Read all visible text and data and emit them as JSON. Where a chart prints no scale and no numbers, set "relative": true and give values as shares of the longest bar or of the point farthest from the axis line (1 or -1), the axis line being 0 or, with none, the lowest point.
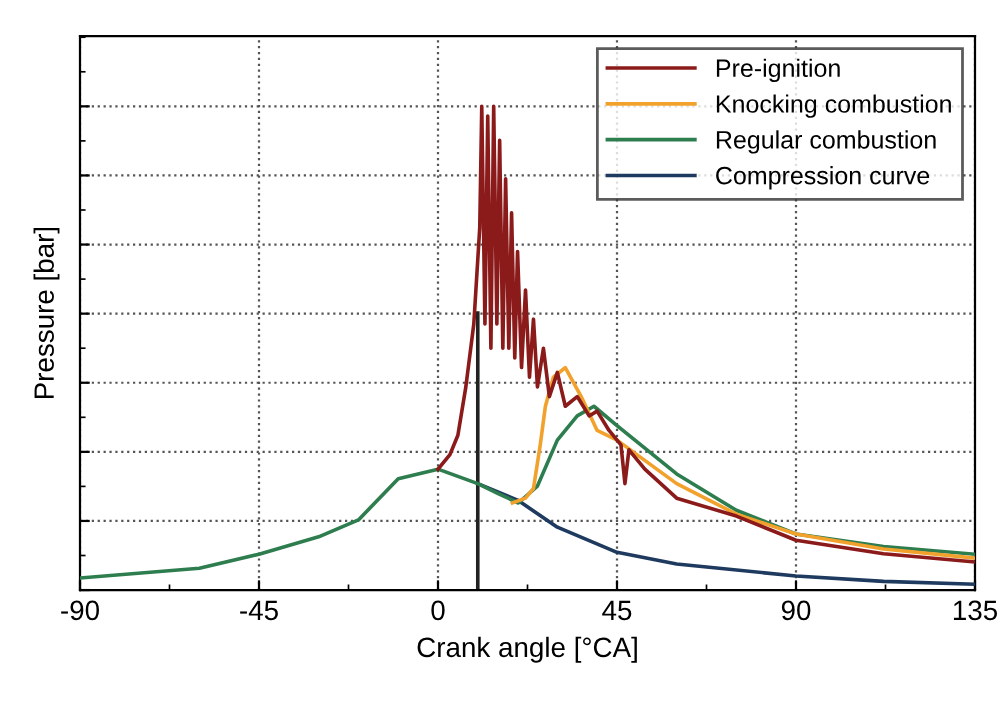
{
  "chart_data": {
    "type": "line",
    "relative": true,
    "xlabel": "Crank angle [°CA]",
    "ylabel": "Pressure [bar]",
    "xlim": [
      -90,
      135
    ],
    "xticks": [
      -90,
      -45,
      0,
      45,
      90,
      135
    ],
    "grid": true,
    "legend": "top right",
    "line_style": "solid",
    "marker": "none",
    "ref_lines": [
      {
        "axis": "x",
        "value": 10,
        "color": "#222222"
      }
    ],
    "series": [
      {
        "name": "Pre-ignition",
        "color": "#8b1a1a",
        "x": [
          0,
          3,
          5,
          7,
          9,
          10.5,
          11,
          11.8,
          12.5,
          13.3,
          14,
          14.8,
          15.5,
          16.3,
          17,
          17.8,
          18.5,
          19.3,
          20,
          21,
          22,
          23,
          24,
          25,
          26.5,
          28,
          30,
          32,
          35,
          38,
          40,
          43,
          46,
          47,
          48,
          52,
          60,
          75,
          90,
          112,
          135
        ],
        "values": [
          0.25,
          0.28,
          0.32,
          0.42,
          0.55,
          0.75,
          1.0,
          0.55,
          0.98,
          0.5,
          1.0,
          0.55,
          0.93,
          0.5,
          0.85,
          0.5,
          0.78,
          0.48,
          0.7,
          0.46,
          0.62,
          0.44,
          0.56,
          0.42,
          0.5,
          0.4,
          0.45,
          0.38,
          0.4,
          0.36,
          0.37,
          0.33,
          0.3,
          0.22,
          0.29,
          0.25,
          0.19,
          0.153,
          0.103,
          0.075,
          0.058
        ]
      },
      {
        "name": "Knocking combustion",
        "color": "#f2a22c",
        "x": [
          18.7,
          22,
          24,
          25.7,
          27,
          29,
          32,
          36,
          40,
          45,
          60,
          75,
          90,
          112,
          135
        ],
        "values": [
          0.18,
          0.19,
          0.21,
          0.3,
          0.38,
          0.44,
          0.46,
          0.4,
          0.33,
          0.31,
          0.22,
          0.157,
          0.116,
          0.085,
          0.066
        ]
      },
      {
        "name": "Regular combustion",
        "color": "#2e7d4f",
        "x": [
          -90,
          -60,
          -45,
          -30,
          -20,
          -10,
          0,
          10,
          15,
          20.2,
          25,
          30,
          35,
          39.2,
          45,
          60,
          75,
          90,
          112,
          135
        ],
        "values": [
          0.025,
          0.045,
          0.074,
          0.11,
          0.145,
          0.23,
          0.25,
          0.22,
          0.2,
          0.18,
          0.215,
          0.31,
          0.36,
          0.38,
          0.34,
          0.24,
          0.165,
          0.116,
          0.09,
          0.074
        ]
      },
      {
        "name": "Compression curve",
        "color": "#1f3a5f",
        "x": [
          10,
          20,
          30,
          45,
          60,
          90,
          112,
          135
        ],
        "values": [
          0.22,
          0.186,
          0.13,
          0.078,
          0.054,
          0.029,
          0.018,
          0.012
        ]
      }
    ]
  }
}
